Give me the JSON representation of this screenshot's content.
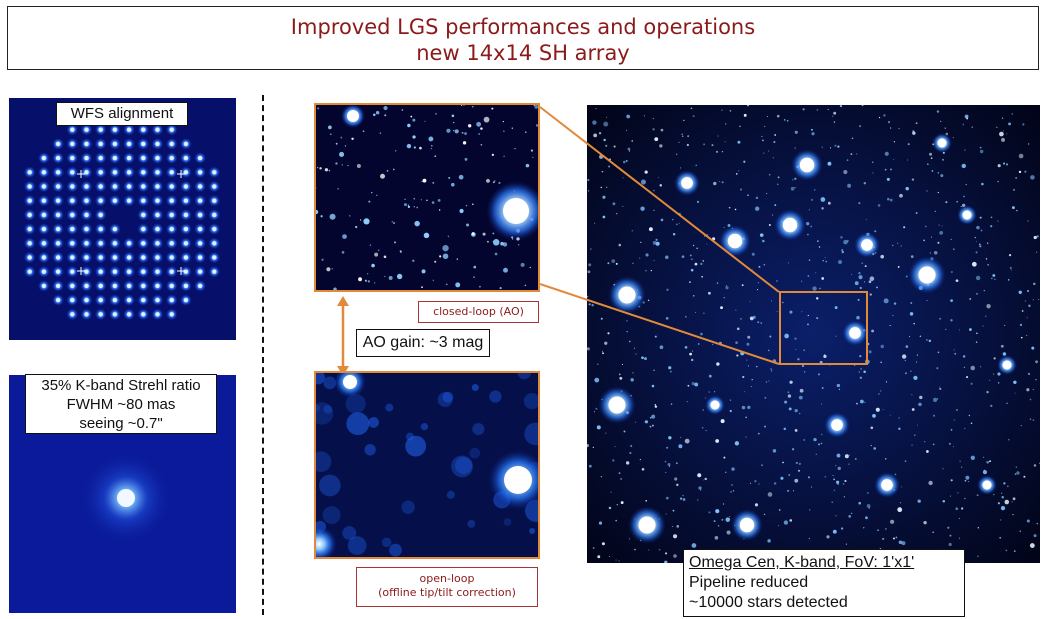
{
  "title": {
    "line1": "Improved LGS performances and operations",
    "line2": "new 14x14 SH array"
  },
  "left_column": {
    "wfs_label": "WFS alignment",
    "strehl_lines": [
      "35% K-band Strehl ratio",
      "FWHM ~80 mas",
      "seeing ~0.7\""
    ]
  },
  "middle_column": {
    "closed_loop_label": "closed-loop (AO)",
    "gain_label": "AO gain: ~3 mag",
    "open_loop_lines": [
      "open-loop",
      "(offline tip/tilt correction)"
    ]
  },
  "right_column": {
    "caption_title": "Omega Cen, K-band, FoV: 1'x1'",
    "caption_lines": [
      "Pipeline reduced",
      "~10000 stars detected"
    ]
  },
  "colors": {
    "title": "#8b1a1a",
    "accent_orange": "#e28a3a",
    "image_bg": "#04063a"
  }
}
